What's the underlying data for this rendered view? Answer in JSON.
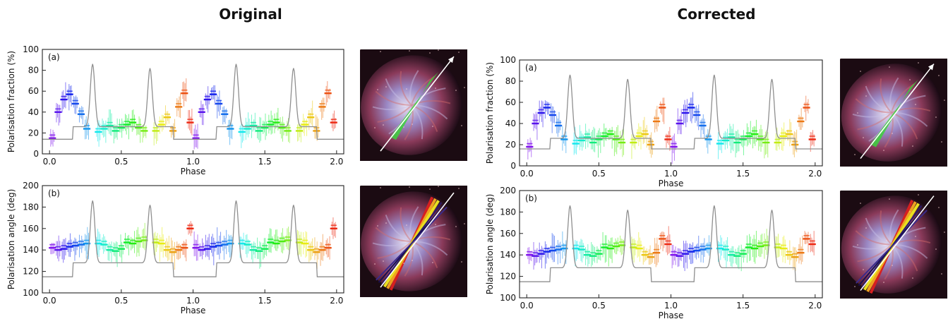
{
  "titles": {
    "left": "Original",
    "right": "Corrected"
  },
  "chart_data": [
    {
      "panel": "Original (a)",
      "type": "line",
      "label": "(a)",
      "xlabel": "Phase",
      "ylabel": "Polarisation fraction (%)",
      "xlim": [
        -0.05,
        2.05
      ],
      "ylim": [
        0,
        100
      ],
      "xticks": [
        "0.0",
        "0.5",
        "1.0",
        "1.5",
        "2.0"
      ],
      "yticks": [
        "0",
        "20",
        "40",
        "60",
        "80",
        "100"
      ],
      "pulse_profile": {
        "baseline": 14,
        "peaks": [
          {
            "x": 0.3,
            "y": 86
          },
          {
            "x": 0.7,
            "y": 82
          }
        ],
        "bridge": 26,
        "min_at": 0.45,
        "min_y": 12
      },
      "series": [
        {
          "phase": [
            0.02,
            0.06,
            0.1,
            0.14,
            0.18,
            0.22,
            0.26,
            0.34,
            0.38,
            0.42,
            0.46,
            0.5,
            0.54,
            0.58,
            0.62,
            0.66,
            0.74,
            0.78,
            0.82,
            0.86,
            0.9,
            0.94,
            0.98
          ],
          "values": [
            15,
            40,
            52,
            57,
            48,
            38,
            24,
            21,
            24,
            27,
            22,
            25,
            28,
            30,
            25,
            22,
            22,
            28,
            35,
            22,
            45,
            58,
            30
          ]
        }
      ]
    },
    {
      "panel": "Original (b)",
      "type": "line",
      "label": "(b)",
      "xlabel": "Phase",
      "ylabel": "Polarisation angle (deg)",
      "xlim": [
        -0.05,
        2.05
      ],
      "ylim": [
        100,
        200
      ],
      "xticks": [
        "0.0",
        "0.5",
        "1.0",
        "1.5",
        "2.0"
      ],
      "yticks": [
        "100",
        "120",
        "140",
        "160",
        "180",
        "200"
      ],
      "pulse_profile": {
        "baseline": 115,
        "peaks": [
          {
            "x": 0.3,
            "y": 186
          },
          {
            "x": 0.7,
            "y": 182
          }
        ],
        "bridge": 128,
        "min_at": 0.45,
        "min_y": 112
      },
      "series": [
        {
          "phase": [
            0.02,
            0.06,
            0.1,
            0.14,
            0.18,
            0.22,
            0.26,
            0.34,
            0.38,
            0.42,
            0.46,
            0.5,
            0.54,
            0.58,
            0.62,
            0.66,
            0.74,
            0.78,
            0.82,
            0.86,
            0.9,
            0.94,
            0.98
          ],
          "values": [
            142,
            140,
            141,
            143,
            144,
            145,
            146,
            146,
            145,
            140,
            139,
            141,
            147,
            146,
            148,
            149,
            147,
            146,
            140,
            138,
            140,
            142,
            160
          ]
        }
      ]
    },
    {
      "panel": "Corrected (a)",
      "type": "line",
      "label": "(a)",
      "xlabel": "Phase",
      "ylabel": "Polarisation fraction (%)",
      "xlim": [
        -0.05,
        2.05
      ],
      "ylim": [
        0,
        100
      ],
      "xticks": [
        "0.0",
        "0.5",
        "1.0",
        "1.5",
        "2.0"
      ],
      "yticks": [
        "0",
        "20",
        "40",
        "60",
        "80",
        "100"
      ],
      "pulse_profile": {
        "baseline": 16,
        "peaks": [
          {
            "x": 0.3,
            "y": 86
          },
          {
            "x": 0.7,
            "y": 82
          }
        ],
        "bridge": 26,
        "min_at": 0.45,
        "min_y": 13
      },
      "series": [
        {
          "phase": [
            0.02,
            0.06,
            0.1,
            0.14,
            0.18,
            0.22,
            0.26,
            0.34,
            0.38,
            0.42,
            0.46,
            0.5,
            0.54,
            0.58,
            0.62,
            0.66,
            0.74,
            0.78,
            0.82,
            0.86,
            0.9,
            0.94,
            0.98
          ],
          "values": [
            18,
            40,
            50,
            55,
            48,
            38,
            25,
            21,
            24,
            27,
            22,
            25,
            28,
            30,
            25,
            22,
            22,
            28,
            30,
            20,
            42,
            55,
            25
          ]
        }
      ]
    },
    {
      "panel": "Corrected (b)",
      "type": "line",
      "label": "(b)",
      "xlabel": "Phase",
      "ylabel": "Polarisation angle (deg)",
      "xlim": [
        -0.05,
        2.05
      ],
      "ylim": [
        100,
        200
      ],
      "xticks": [
        "0.0",
        "0.5",
        "1.0",
        "1.5",
        "2.0"
      ],
      "yticks": [
        "100",
        "120",
        "140",
        "160",
        "180",
        "200"
      ],
      "pulse_profile": {
        "baseline": 115,
        "peaks": [
          {
            "x": 0.3,
            "y": 186
          },
          {
            "x": 0.7,
            "y": 182
          }
        ],
        "bridge": 128,
        "min_at": 0.45,
        "min_y": 112
      },
      "series": [
        {
          "phase": [
            0.02,
            0.06,
            0.1,
            0.14,
            0.18,
            0.22,
            0.26,
            0.34,
            0.38,
            0.42,
            0.46,
            0.5,
            0.54,
            0.58,
            0.62,
            0.66,
            0.74,
            0.78,
            0.82,
            0.86,
            0.9,
            0.94,
            0.98
          ],
          "values": [
            140,
            139,
            141,
            143,
            144,
            145,
            146,
            146,
            145,
            140,
            139,
            141,
            147,
            146,
            148,
            149,
            147,
            146,
            140,
            138,
            142,
            155,
            150
          ]
        }
      ]
    }
  ],
  "colors": {
    "profile": "#8f8f8f",
    "axis": "#222222"
  }
}
